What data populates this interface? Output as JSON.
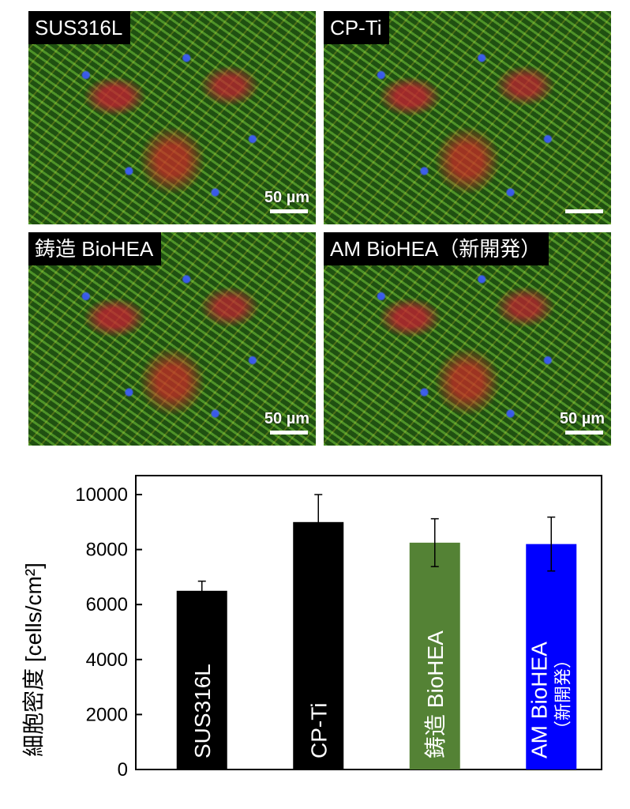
{
  "panels": [
    {
      "label": "SUS316L",
      "scale": "50 µm"
    },
    {
      "label": "CP-Ti",
      "scale": ""
    },
    {
      "label": "鋳造 BioHEA",
      "scale": "50 µm"
    },
    {
      "label": "AM BioHEA（新開発）",
      "scale": "50 µm"
    }
  ],
  "chart_data": {
    "type": "bar",
    "categories": [
      "SUS316L",
      "CP-Ti",
      "鋳造 BioHEA",
      "AM BioHEA"
    ],
    "category_sublabels": [
      "",
      "",
      "",
      "（新開発）"
    ],
    "values": [
      6500,
      9000,
      8250,
      8200
    ],
    "errors": [
      350,
      1000,
      870,
      980
    ],
    "colors": [
      "#000000",
      "#000000",
      "#548235",
      "#0000ff"
    ],
    "ylabel": "細胞密度 [cells/cm²]",
    "ylim": [
      0,
      10000
    ],
    "yticks": [
      0,
      2000,
      4000,
      6000,
      8000,
      10000
    ],
    "grid": false,
    "legend": "none"
  }
}
